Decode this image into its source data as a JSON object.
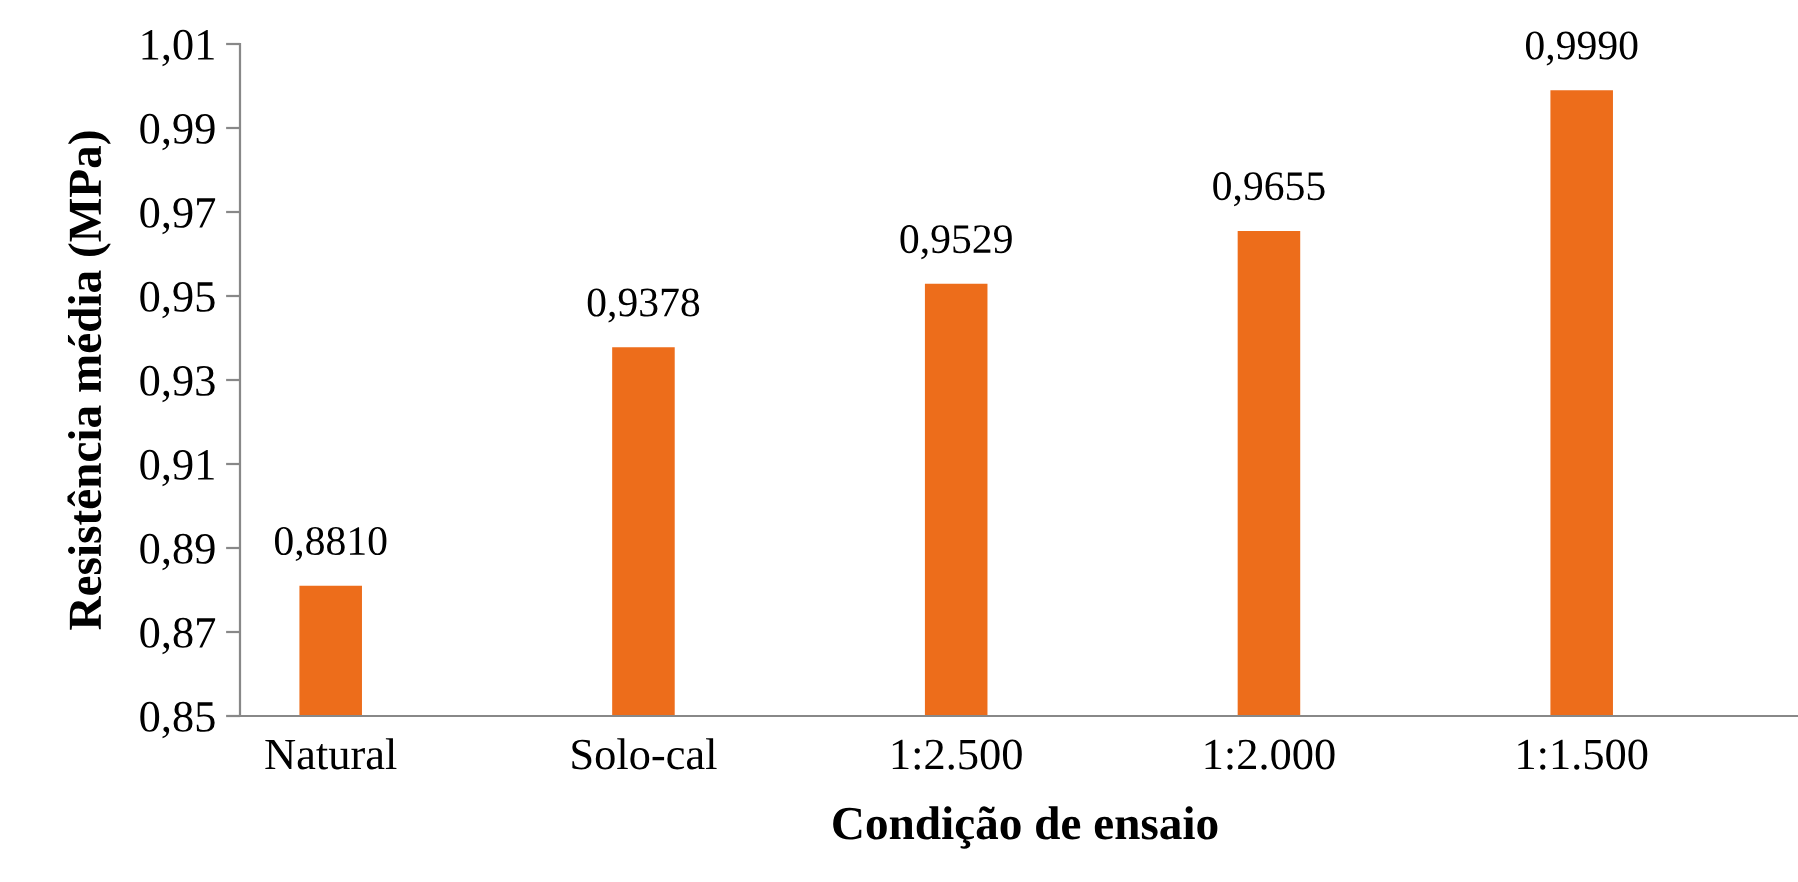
{
  "chart_data": {
    "type": "bar",
    "xlabel": "Condição de ensaio",
    "ylabel": "Resistência média (MPa)",
    "categories": [
      "Natural",
      "Solo-cal",
      "1:2.500",
      "1:2.000",
      "1:1.500"
    ],
    "values": [
      0.881,
      0.9378,
      0.9529,
      0.9655,
      0.999
    ],
    "value_labels": [
      "0,8810",
      "0,9378",
      "0,9529",
      "0,9655",
      "0,9990"
    ],
    "color": "#ed6d1b",
    "ylim": [
      0.85,
      1.01
    ],
    "yticks": [
      {
        "value": 0.85,
        "label": "0,85"
      },
      {
        "value": 0.87,
        "label": "0,87"
      },
      {
        "value": 0.89,
        "label": "0,89"
      },
      {
        "value": 0.91,
        "label": "0,91"
      },
      {
        "value": 0.93,
        "label": "0,93"
      },
      {
        "value": 0.95,
        "label": "0,95"
      },
      {
        "value": 0.97,
        "label": "0,97"
      },
      {
        "value": 0.99,
        "label": "0,99"
      },
      {
        "value": 1.01,
        "label": "1,01"
      }
    ],
    "grid": false,
    "legend": false
  }
}
